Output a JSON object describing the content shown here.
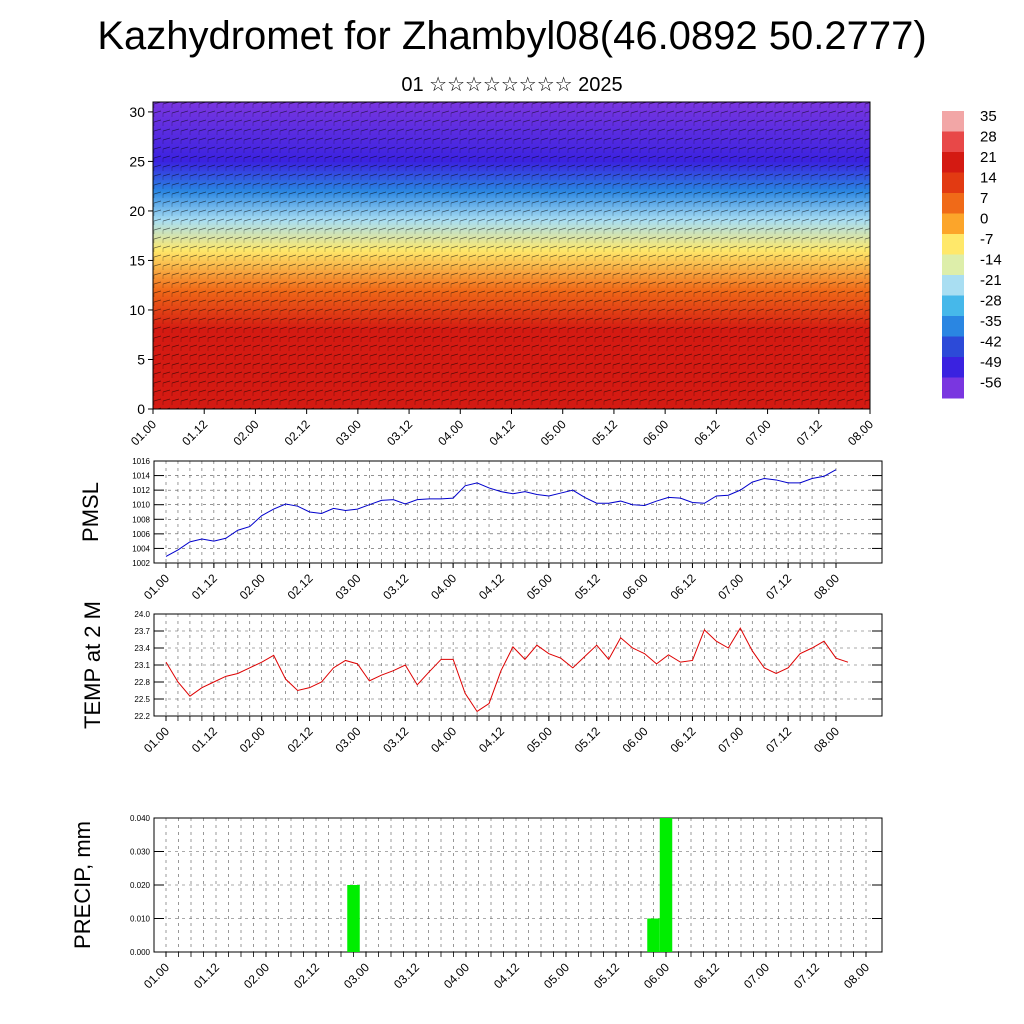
{
  "header": {
    "title": "Kazhydromet for Zhambyl08(46.0892 50.2777)",
    "subtitle": "01 ☆☆☆☆☆☆☆☆ 2025"
  },
  "colors": {
    "pmsl_line": "#0000cc",
    "temp_line": "#dd0000",
    "precip_bar": "#00ee00",
    "grid": "#555555"
  },
  "chart_data": [
    {
      "type": "heatmap",
      "title": "",
      "ylabel": "",
      "ylim": [
        0,
        31
      ],
      "yticks": [
        "0",
        "5",
        "10",
        "15",
        "20",
        "25",
        "30"
      ],
      "x_tick_labels": [
        "01.00",
        "01.12",
        "02.00",
        "02.12",
        "03.00",
        "03.12",
        "04.00",
        "04.12",
        "05.00",
        "05.12",
        "06.00",
        "06.12",
        "07.00",
        "07.12",
        "08.00"
      ],
      "overlay": "wind vectors",
      "colorbar": {
        "labels": [
          "35",
          "28",
          "21",
          "14",
          "7",
          "0",
          "-7",
          "-14",
          "-21",
          "-28",
          "-35",
          "-42",
          "-49",
          "-56"
        ],
        "colors": [
          "#f2a6a6",
          "#e84848",
          "#d41a12",
          "#e23a12",
          "#f06a18",
          "#fca52a",
          "#ffe86a",
          "#ddeeaa",
          "#a9def2",
          "#46b8ea",
          "#2a86e2",
          "#2c4ad8",
          "#3a22e0",
          "#7a36e0"
        ]
      },
      "field_by_height": [
        {
          "level": 0,
          "value": 24
        },
        {
          "level": 8,
          "value": 18
        },
        {
          "level": 12,
          "value": 6
        },
        {
          "level": 16,
          "value": -8
        },
        {
          "level": 19,
          "value": -22
        },
        {
          "level": 22,
          "value": -38
        },
        {
          "level": 25,
          "value": -52
        },
        {
          "level": 31,
          "value": -58
        }
      ]
    },
    {
      "type": "line",
      "ylabel": "PMSL",
      "ylim": [
        1002,
        1016
      ],
      "yticks": [
        1002,
        1004,
        1006,
        1008,
        1010,
        1012,
        1014,
        1016
      ],
      "x_tick_labels": [
        "01.00",
        "01.12",
        "02.00",
        "02.12",
        "03.00",
        "03.12",
        "04.00",
        "04.12",
        "05.00",
        "05.12",
        "06.00",
        "06.12",
        "07.00",
        "07.12",
        "08.00"
      ],
      "series": [
        {
          "values": [
            1002.9,
            1003.8,
            1004.9,
            1005.3,
            1005.0,
            1005.4,
            1006.5,
            1007.0,
            1008.5,
            1009.4,
            1010.1,
            1009.8,
            1009.0,
            1008.8,
            1009.5,
            1009.2,
            1009.4,
            1010.0,
            1010.6,
            1010.7,
            1010.1,
            1010.7,
            1010.8,
            1010.8,
            1010.9,
            1012.6,
            1013.0,
            1012.3,
            1011.8,
            1011.5,
            1011.8,
            1011.4,
            1011.2,
            1011.6,
            1012.0,
            1011.0,
            1010.2,
            1010.2,
            1010.5,
            1010.0,
            1009.9,
            1010.5,
            1011.0,
            1010.9,
            1010.3,
            1010.2,
            1011.2,
            1011.3,
            1012.0,
            1013.1,
            1013.6,
            1013.4,
            1013.0,
            1013.0,
            1013.6,
            1013.9,
            1014.8
          ]
        }
      ]
    },
    {
      "type": "line",
      "ylabel": "TEMP at 2 M",
      "ylim": [
        22.2,
        24.0
      ],
      "yticks": [
        "22.2",
        "22.5",
        "22.8",
        "23.1",
        "23.4",
        "23.7",
        "24.0"
      ],
      "x_tick_labels": [
        "01.00",
        "01.12",
        "02.00",
        "02.12",
        "03.00",
        "03.12",
        "04.00",
        "04.12",
        "05.00",
        "05.12",
        "06.00",
        "06.12",
        "07.00",
        "07.12",
        "08.00"
      ],
      "series": [
        {
          "values": [
            23.15,
            22.8,
            22.55,
            22.7,
            22.8,
            22.9,
            22.95,
            23.05,
            23.15,
            23.27,
            22.85,
            22.65,
            22.7,
            22.8,
            23.05,
            23.18,
            23.12,
            22.82,
            22.92,
            23.0,
            23.1,
            22.75,
            22.98,
            23.2,
            23.2,
            22.6,
            22.28,
            22.42,
            23.0,
            23.42,
            23.2,
            23.45,
            23.3,
            23.22,
            23.05,
            23.25,
            23.45,
            23.2,
            23.58,
            23.4,
            23.3,
            23.12,
            23.28,
            23.15,
            23.18,
            23.72,
            23.52,
            23.4,
            23.75,
            23.35,
            23.05,
            22.95,
            23.05,
            23.3,
            23.4,
            23.52,
            23.22,
            23.15
          ]
        }
      ]
    },
    {
      "type": "bar",
      "ylabel": "PRECIP, mm",
      "ylim": [
        0,
        0.04
      ],
      "yticks": [
        "0.000",
        "0.010",
        "0.020",
        "0.030",
        "0.040"
      ],
      "x_tick_labels": [
        "01.00",
        "01.12",
        "02.00",
        "02.12",
        "03.00",
        "03.12",
        "04.00",
        "04.12",
        "05.00",
        "05.12",
        "06.00",
        "06.12",
        "07.00",
        "07.12",
        "08.00"
      ],
      "bars": [
        {
          "step": 15,
          "value": 0.02
        },
        {
          "step": 39,
          "value": 0.01
        },
        {
          "step": 40,
          "value": 0.04
        }
      ]
    }
  ]
}
